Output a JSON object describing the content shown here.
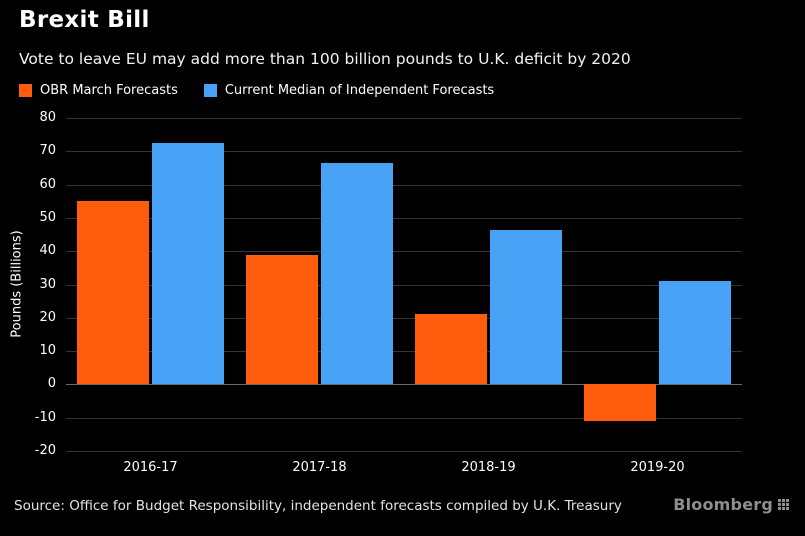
{
  "header": {
    "title": "Brexit Bill",
    "subtitle": "Vote to leave EU may add more than 100 billion pounds to U.K. deficit by 2020"
  },
  "legend": [
    {
      "label": "OBR March Forecasts",
      "color": "#ff5c0e"
    },
    {
      "label": "Current Median of Independent Forecasts",
      "color": "#47a1f4"
    }
  ],
  "chart_data": {
    "type": "bar",
    "categories": [
      "2016-17",
      "2017-18",
      "2018-19",
      "2019-20"
    ],
    "series": [
      {
        "name": "OBR March Forecasts",
        "color": "#ff5c0e",
        "values": [
          55,
          39,
          21,
          -11
        ]
      },
      {
        "name": "Current Median of Independent Forecasts",
        "color": "#47a1f4",
        "values": [
          72.5,
          66.5,
          46.5,
          31
        ]
      }
    ],
    "title": "Brexit Bill",
    "xlabel": "",
    "ylabel": "Pounds (Billions)",
    "ylim": [
      -20,
      80
    ],
    "ytick_step": 10,
    "grid": true,
    "legend_position": "top-left",
    "background": "#000000"
  },
  "footer": {
    "source": "Source: Office for Budget Responsibility, independent forecasts compiled by U.K. Treasury",
    "brand": "Bloomberg",
    "brand_icon": "bloomberg-grid-icon"
  }
}
